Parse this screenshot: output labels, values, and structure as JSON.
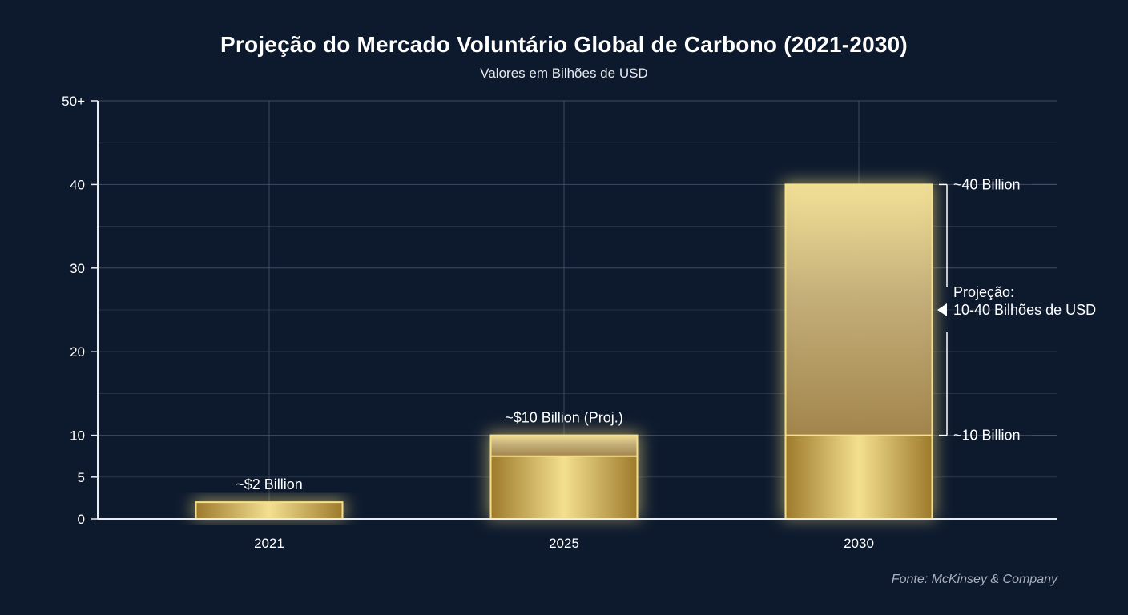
{
  "chart_data": {
    "type": "bar",
    "title": "Projeção do Mercado Voluntário Global de Carbono (2021-2030)",
    "subtitle": "Valores em Bilhões de USD",
    "source": "Fonte: McKinsey & Company",
    "categories": [
      "2021",
      "2025",
      "2030"
    ],
    "ylim": [
      0,
      50
    ],
    "y_ticks": [
      {
        "value": 0,
        "label": "0"
      },
      {
        "value": 5,
        "label": "5"
      },
      {
        "value": 10,
        "label": "10"
      },
      {
        "value": 20,
        "label": "20"
      },
      {
        "value": 30,
        "label": "30"
      },
      {
        "value": 40,
        "label": "40"
      },
      {
        "value": 50,
        "label": "50+"
      }
    ],
    "grid": true,
    "bars": [
      {
        "category": "2021",
        "solid": 2,
        "projected_to": 2,
        "label": "~$2 Billion"
      },
      {
        "category": "2025",
        "solid": 7.5,
        "projected_to": 10,
        "label": "~$10 Billion (Proj.)"
      },
      {
        "category": "2030",
        "solid": 10,
        "projected_to": 40,
        "label": ""
      }
    ],
    "range_annotation": {
      "category": "2030",
      "low": 10,
      "high": 40,
      "low_label": "~10 Billion",
      "high_label": "~40 Billion",
      "text_line1": "Projeção:",
      "text_line2": "10-40 Bilhões de USD"
    },
    "colors": {
      "background": "#0d1a2e",
      "gold_dark": "#a8832f",
      "gold_light": "#f2dd8c",
      "gold_outline": "#f7e08a",
      "projection_top": "#fbe79a",
      "projection_bottom": "#a8874a",
      "grid": "#44506a",
      "axis": "#e8ecf2"
    }
  }
}
